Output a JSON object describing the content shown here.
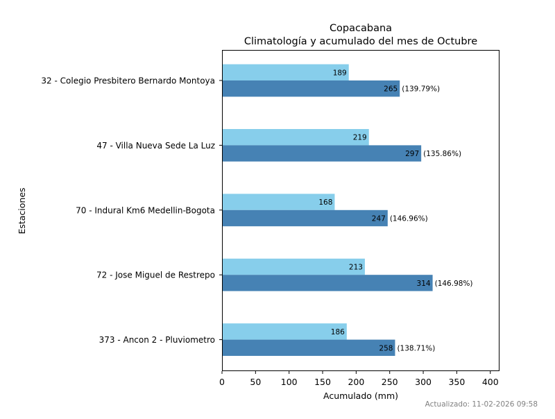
{
  "chart_data": {
    "type": "bar",
    "orientation": "horizontal",
    "title": "Copacabana\nClimatología y acumulado del mes de Octubre",
    "title_lines": [
      "Copacabana",
      "Climatología y acumulado del mes de Octubre"
    ],
    "xlabel": "Acumulado (mm)",
    "ylabel": "Estaciones",
    "xlim": [
      0,
      413.7
    ],
    "xticks": [
      0,
      50,
      100,
      150,
      200,
      250,
      300,
      350,
      400
    ],
    "xtick_labels": [
      "0",
      "50",
      "100",
      "150",
      "200",
      "250",
      "300",
      "350",
      "400"
    ],
    "grid": false,
    "legend": null,
    "categories": [
      "32 - Colegio Presbitero Bernardo Montoya ",
      "47 - Villa Nueva Sede La Luz",
      "70 - Indural Km6 Medellin-Bogota",
      "72 - Jose Miguel de Restrepo",
      "373 - Ancon 2 - Pluviometro"
    ],
    "series": [
      {
        "name": "Climatología",
        "color": "#87ceeb",
        "values": [
          189,
          219,
          168,
          213,
          186
        ],
        "labels": [
          "189",
          "219",
          "168",
          "213",
          "186"
        ]
      },
      {
        "name": "Acumulado",
        "color": "#4682b4",
        "values": [
          265,
          297,
          247,
          314,
          258
        ],
        "labels": [
          "265",
          "297",
          "247",
          "314",
          "258"
        ],
        "percent_labels": [
          "(139.79%)",
          "(135.86%)",
          "(146.96%)",
          "(146.98%)",
          "(138.71%)"
        ]
      }
    ]
  },
  "footer": {
    "updated": "Actualizado: 11-02-2026 09:58"
  }
}
